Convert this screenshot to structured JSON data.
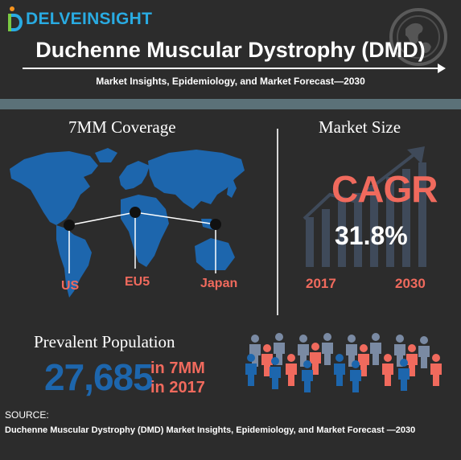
{
  "brand": {
    "name": "DELVEINSIGHT",
    "accent": "#29abe2"
  },
  "header": {
    "title": "Duchenne Muscular Dystrophy (DMD)",
    "subtitle": "Market Insights, Epidemiology, and Market Forecast—2030"
  },
  "coverage": {
    "heading": "7MM Coverage",
    "markers": [
      "US",
      "EU5",
      "Japan"
    ]
  },
  "market": {
    "heading": "Market Size",
    "cagr_label": "CAGR",
    "cagr_value": "31.8%",
    "start_year": "2017",
    "end_year": "2030"
  },
  "population": {
    "heading": "Prevalent Population",
    "value": "27,685",
    "unit_line1": "in 7MM",
    "unit_line2": "in 2017"
  },
  "source": {
    "label": "SOURCE:",
    "text": "Duchenne Muscular Dystrophy (DMD) Market Insights, Epidemiology, and Market Forecast —2030"
  },
  "colors": {
    "background": "#2c2c2c",
    "blue": "#1d66ad",
    "coral": "#f06a5d",
    "band": "#5b7178"
  }
}
